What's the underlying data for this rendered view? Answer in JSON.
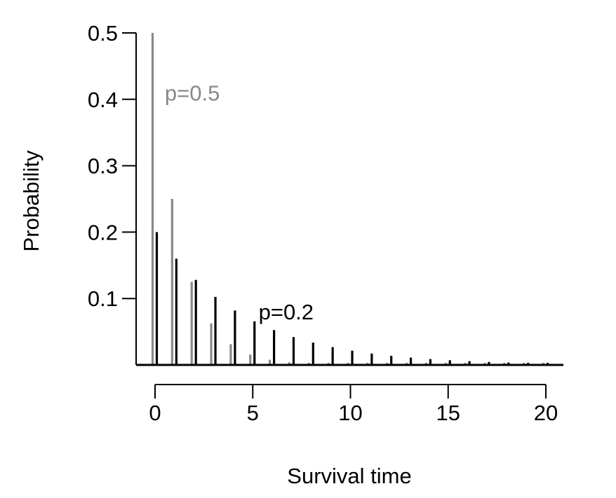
{
  "chart_data": {
    "type": "bar",
    "xlabel": "Survival time",
    "ylabel": "Probability",
    "xlim": [
      -1,
      21
    ],
    "ylim": [
      0,
      0.5
    ],
    "x_ticks": [
      0,
      5,
      10,
      15,
      20
    ],
    "y_ticks": [
      0.1,
      0.2,
      0.3,
      0.4,
      0.5
    ],
    "x_tick_labels": [
      "0",
      "5",
      "10",
      "15",
      "20"
    ],
    "y_tick_labels": [
      "0.1",
      "0.2",
      "0.3",
      "0.4",
      "0.5"
    ],
    "grid": false,
    "x": [
      0,
      1,
      2,
      3,
      4,
      5,
      6,
      7,
      8,
      9,
      10,
      11,
      12,
      13,
      14,
      15,
      16,
      17,
      18,
      19,
      20
    ],
    "series": [
      {
        "color": "#888888",
        "values": [
          0.5,
          0.25,
          0.125,
          0.0625,
          0.03125,
          0.015625,
          0.0078125,
          0.0039063,
          0.0019531,
          0.0009766,
          0.0004883,
          0.0002441,
          0.0001221,
          6.1e-05,
          3.05e-05,
          1.53e-05,
          7.6e-06,
          3.8e-06,
          1.9e-06,
          1e-06,
          5e-07
        ]
      },
      {
        "color": "#000000",
        "values": [
          0.2,
          0.16,
          0.128,
          0.1024,
          0.08192,
          0.065536,
          0.052429,
          0.041943,
          0.033554,
          0.026844,
          0.021475,
          0.01718,
          0.013744,
          0.010995,
          0.008796,
          0.007037,
          0.00563,
          0.004504,
          0.003603,
          0.002882,
          0.002306
        ]
      }
    ],
    "annotations": [
      {
        "text": "p=0.5",
        "color": "#888888",
        "x": 0.5,
        "y": 0.41
      },
      {
        "text": "p=0.2",
        "color": "#000000",
        "x": 5.3,
        "y": 0.08
      }
    ]
  }
}
